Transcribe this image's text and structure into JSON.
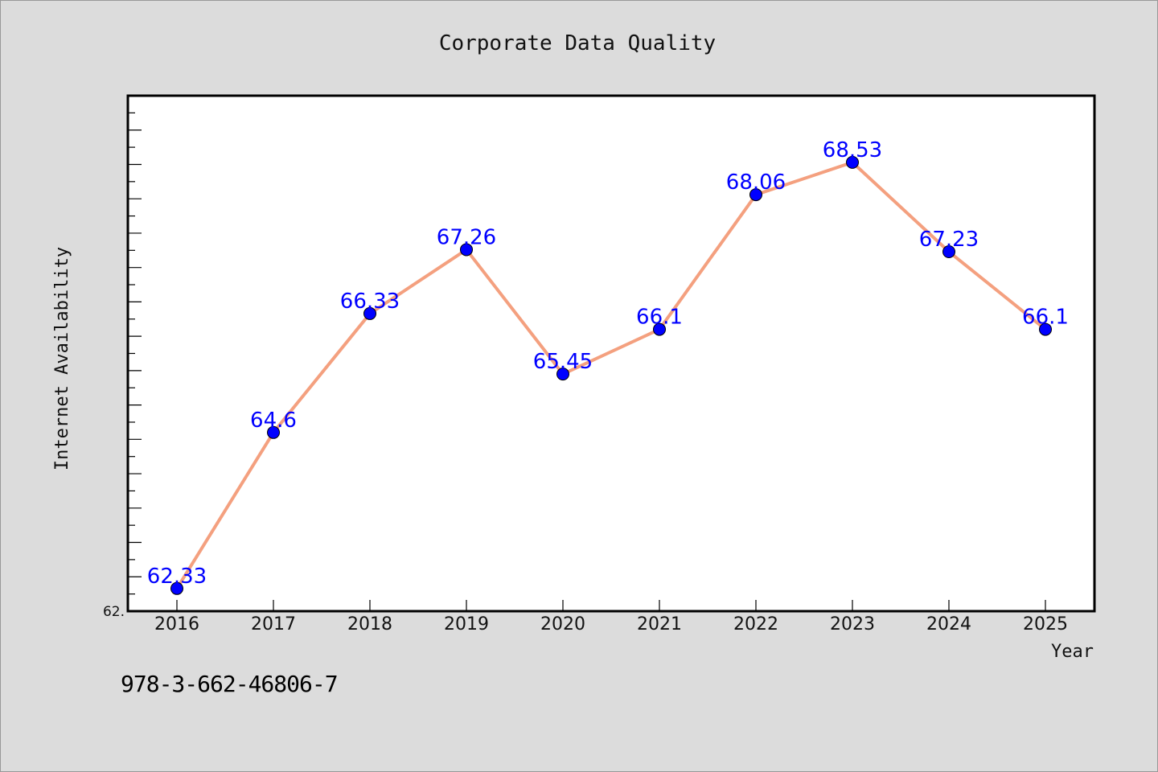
{
  "chart_data": {
    "type": "line",
    "title": "Corporate Data Quality",
    "xlabel": "Year",
    "ylabel": "Internet Availability",
    "categories": [
      "2016",
      "2017",
      "2018",
      "2019",
      "2020",
      "2021",
      "2022",
      "2023",
      "2024",
      "2025"
    ],
    "series": [
      {
        "values": [
          62.33,
          64.6,
          66.33,
          67.26,
          65.45,
          66.1,
          68.06,
          68.53,
          67.23,
          66.1
        ],
        "labels": [
          "62.33",
          "64.6",
          "66.33",
          "67.26",
          "65.45",
          "66.1",
          "68.06",
          "68.53",
          "67.23",
          "66.1"
        ]
      }
    ],
    "ytick_label": "62.",
    "ylim": [
      62.0,
      69.5
    ],
    "grid": false,
    "legend": "none",
    "colors": {
      "line": "#f4a07f",
      "marker": "#0000ff",
      "data_label": "#0000ff",
      "plot_bg": "#ffffff",
      "page_bg": "#dcdcdc"
    }
  },
  "footer": {
    "code": "978-3-662-46806-7"
  }
}
